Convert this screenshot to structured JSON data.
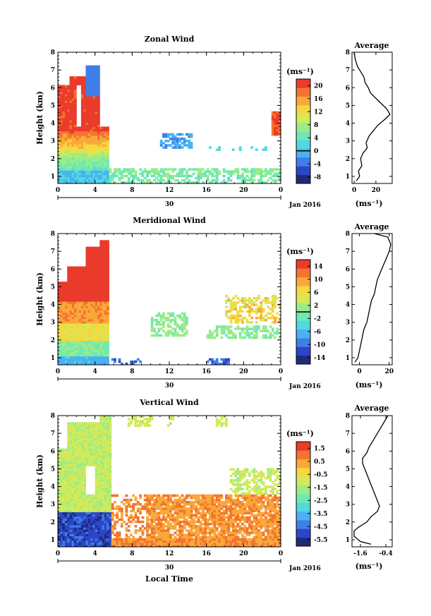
{
  "chart_data": [
    {
      "type": "heatmap",
      "title": "Zonal Wind",
      "ylabel": "Height (km)",
      "yticks": [
        "1",
        "2",
        "3",
        "4",
        "5",
        "6",
        "7",
        "8"
      ],
      "ylim": [
        0.6,
        8
      ],
      "xticks": [
        "0",
        "4",
        "8",
        "12",
        "16",
        "20",
        "0"
      ],
      "xlim": [
        0,
        24
      ],
      "date_day": "30",
      "date_label": "Jan 2016",
      "colorbar": {
        "unit": "(ms⁻¹)",
        "ticks": [
          "20",
          "16",
          "12",
          "8",
          "4",
          "0",
          "-4",
          "-8"
        ],
        "range": [
          -10,
          22
        ],
        "zero_line": 0
      },
      "average": {
        "title": "Average",
        "xticks": [
          "0",
          "20"
        ],
        "xlim": [
          -2,
          35
        ],
        "xlabel": "(ms⁻¹)",
        "profile": [
          [
            0.75,
            2
          ],
          [
            1.0,
            5
          ],
          [
            1.3,
            4
          ],
          [
            1.6,
            7
          ],
          [
            2.0,
            6
          ],
          [
            2.3,
            8
          ],
          [
            2.6,
            12
          ],
          [
            2.9,
            11
          ],
          [
            3.3,
            14
          ],
          [
            3.6,
            18
          ],
          [
            3.9,
            22
          ],
          [
            4.2,
            28
          ],
          [
            4.5,
            33
          ],
          [
            4.8,
            30
          ],
          [
            5.1,
            25
          ],
          [
            5.4,
            20
          ],
          [
            5.7,
            15
          ],
          [
            6.0,
            13
          ],
          [
            6.3,
            10
          ],
          [
            6.6,
            9
          ],
          [
            6.9,
            6
          ],
          [
            7.2,
            3
          ],
          [
            7.6,
            1
          ],
          [
            8.0,
            0
          ]
        ]
      }
    },
    {
      "type": "heatmap",
      "title": "Meridional Wind",
      "ylabel": "Height (km)",
      "yticks": [
        "1",
        "2",
        "3",
        "4",
        "5",
        "6",
        "7",
        "8"
      ],
      "ylim": [
        0.6,
        8
      ],
      "xticks": [
        "0",
        "4",
        "8",
        "12",
        "16",
        "20",
        "0"
      ],
      "xlim": [
        0,
        24
      ],
      "date_day": "30",
      "date_label": "Jan 2016",
      "colorbar": {
        "unit": "(ms⁻¹)",
        "ticks": [
          "14",
          "10",
          "6",
          "2",
          "-2",
          "-6",
          "-10",
          "-14"
        ],
        "range": [
          -16,
          16
        ],
        "zero_line": 0
      },
      "average": {
        "title": "Average",
        "xticks": [
          "0",
          "20"
        ],
        "xlim": [
          -5,
          22
        ],
        "xlabel": "(ms⁻¹)",
        "profile": [
          [
            0.75,
            -3
          ],
          [
            1.0,
            -1
          ],
          [
            1.4,
            0
          ],
          [
            1.8,
            1
          ],
          [
            2.2,
            2
          ],
          [
            2.6,
            3
          ],
          [
            3.0,
            5
          ],
          [
            3.4,
            6
          ],
          [
            3.8,
            7
          ],
          [
            4.2,
            8
          ],
          [
            4.6,
            10
          ],
          [
            5.0,
            11
          ],
          [
            5.4,
            12
          ],
          [
            5.8,
            14
          ],
          [
            6.2,
            16
          ],
          [
            6.6,
            18
          ],
          [
            7.0,
            20
          ],
          [
            7.4,
            21
          ],
          [
            7.8,
            19
          ],
          [
            8.0,
            10
          ]
        ]
      }
    },
    {
      "type": "heatmap",
      "title": "Vertical Wind",
      "ylabel": "Height (km)",
      "yticks": [
        "1",
        "2",
        "3",
        "4",
        "5",
        "6",
        "7",
        "8"
      ],
      "ylim": [
        0.6,
        8
      ],
      "xticks": [
        "0",
        "4",
        "8",
        "12",
        "16",
        "20",
        "0"
      ],
      "xlim": [
        0,
        24
      ],
      "date_day": "30",
      "date_label": "Jan 2016",
      "xlabel": "Local Time",
      "colorbar": {
        "unit": "(ms⁻¹)",
        "ticks": [
          "1.5",
          "0.5",
          "-0.5",
          "-1.5",
          "-2.5",
          "-3.5",
          "-4.5",
          "-5.5"
        ],
        "range": [
          -6,
          2
        ],
        "zero_line": null
      },
      "average": {
        "title": "Average",
        "xticks": [
          "-1.6",
          "-0.4"
        ],
        "xlim": [
          -2.0,
          -0.1
        ],
        "xlabel": "(ms⁻¹)",
        "profile": [
          [
            0.75,
            -1.1
          ],
          [
            0.9,
            -1.6
          ],
          [
            1.2,
            -1.9
          ],
          [
            1.5,
            -1.9
          ],
          [
            1.7,
            -1.7
          ],
          [
            2.0,
            -1.3
          ],
          [
            2.3,
            -1.1
          ],
          [
            2.6,
            -0.8
          ],
          [
            2.9,
            -0.7
          ],
          [
            3.2,
            -0.8
          ],
          [
            3.5,
            -0.9
          ],
          [
            3.8,
            -1.0
          ],
          [
            4.1,
            -1.1
          ],
          [
            4.4,
            -1.2
          ],
          [
            4.7,
            -1.3
          ],
          [
            5.0,
            -1.4
          ],
          [
            5.3,
            -1.5
          ],
          [
            5.6,
            -1.5
          ],
          [
            5.9,
            -1.3
          ],
          [
            6.2,
            -1.2
          ],
          [
            6.6,
            -1.0
          ],
          [
            7.0,
            -0.8
          ],
          [
            7.4,
            -0.6
          ],
          [
            7.8,
            -0.4
          ],
          [
            8.0,
            -0.3
          ]
        ]
      }
    }
  ],
  "colors": {
    "scale": [
      "#1e2b7a",
      "#2c46c8",
      "#3f7ee8",
      "#4ab2f0",
      "#51d8e0",
      "#6fe8b4",
      "#9cec86",
      "#d2ea5a",
      "#f6d73e",
      "#f9a83a",
      "#f4742f",
      "#ea3b2c"
    ]
  }
}
